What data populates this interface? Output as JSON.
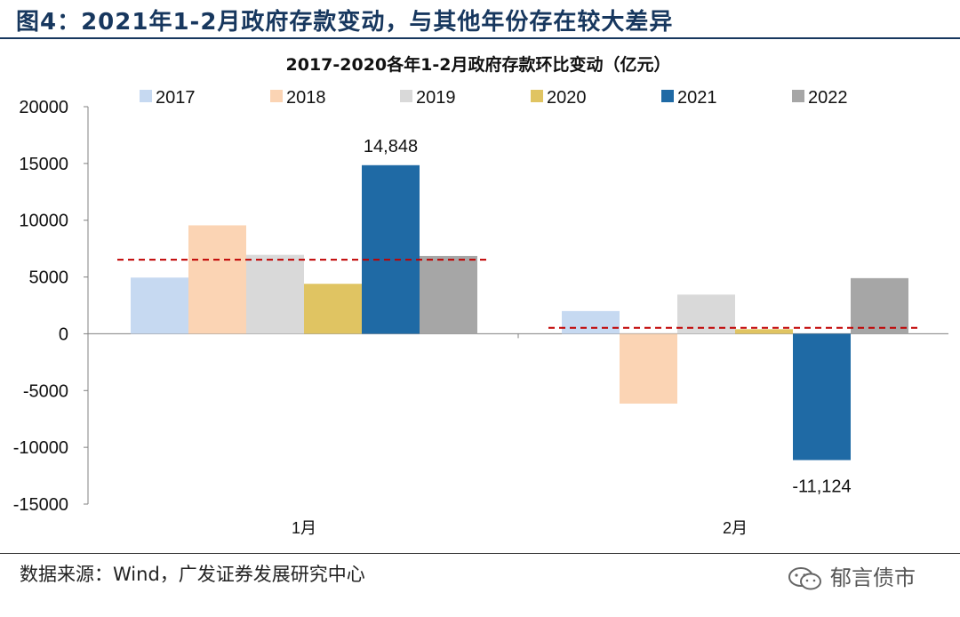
{
  "header": {
    "title": "图4：2021年1-2月政府存款变动，与其他年份存在较大差异"
  },
  "footer": {
    "source": "数据来源：Wind，广发证券发展研究中心",
    "watermark": "郁言债市",
    "watermark_icon": "wechat-icon"
  },
  "chart_data": {
    "type": "bar",
    "title": "2017-2020各年1-2月政府存款环比变动（亿元）",
    "categories": [
      "1月",
      "2月"
    ],
    "series": [
      {
        "name": "2017",
        "color": "#c6d9f1",
        "values": [
          4950,
          2000
        ]
      },
      {
        "name": "2018",
        "color": "#fbd4b4",
        "values": [
          9550,
          -6150
        ]
      },
      {
        "name": "2019",
        "color": "#d9d9d9",
        "values": [
          6950,
          3450
        ]
      },
      {
        "name": "2020",
        "color": "#e0c462",
        "values": [
          4400,
          400
        ]
      },
      {
        "name": "2021",
        "color": "#1f6aa5",
        "values": [
          14848,
          -11124
        ]
      },
      {
        "name": "2022",
        "color": "#a6a6a6",
        "values": [
          6850,
          4900
        ]
      }
    ],
    "data_labels": [
      {
        "series": "2021",
        "category": "1月",
        "text": "14,848"
      },
      {
        "series": "2021",
        "category": "2月",
        "text": "-11,124"
      }
    ],
    "reference_lines": [
      {
        "category": "1月",
        "value": 6520,
        "color": "#c00000",
        "style": "dashed"
      },
      {
        "category": "2月",
        "value": 520,
        "color": "#c00000",
        "style": "dashed"
      }
    ],
    "yticks": [
      "20000",
      "15000",
      "10000",
      "5000",
      "0",
      "-5000",
      "-10000",
      "-15000"
    ],
    "ylim": [
      -15000,
      20000
    ],
    "legend_position": "top",
    "grid": false
  }
}
